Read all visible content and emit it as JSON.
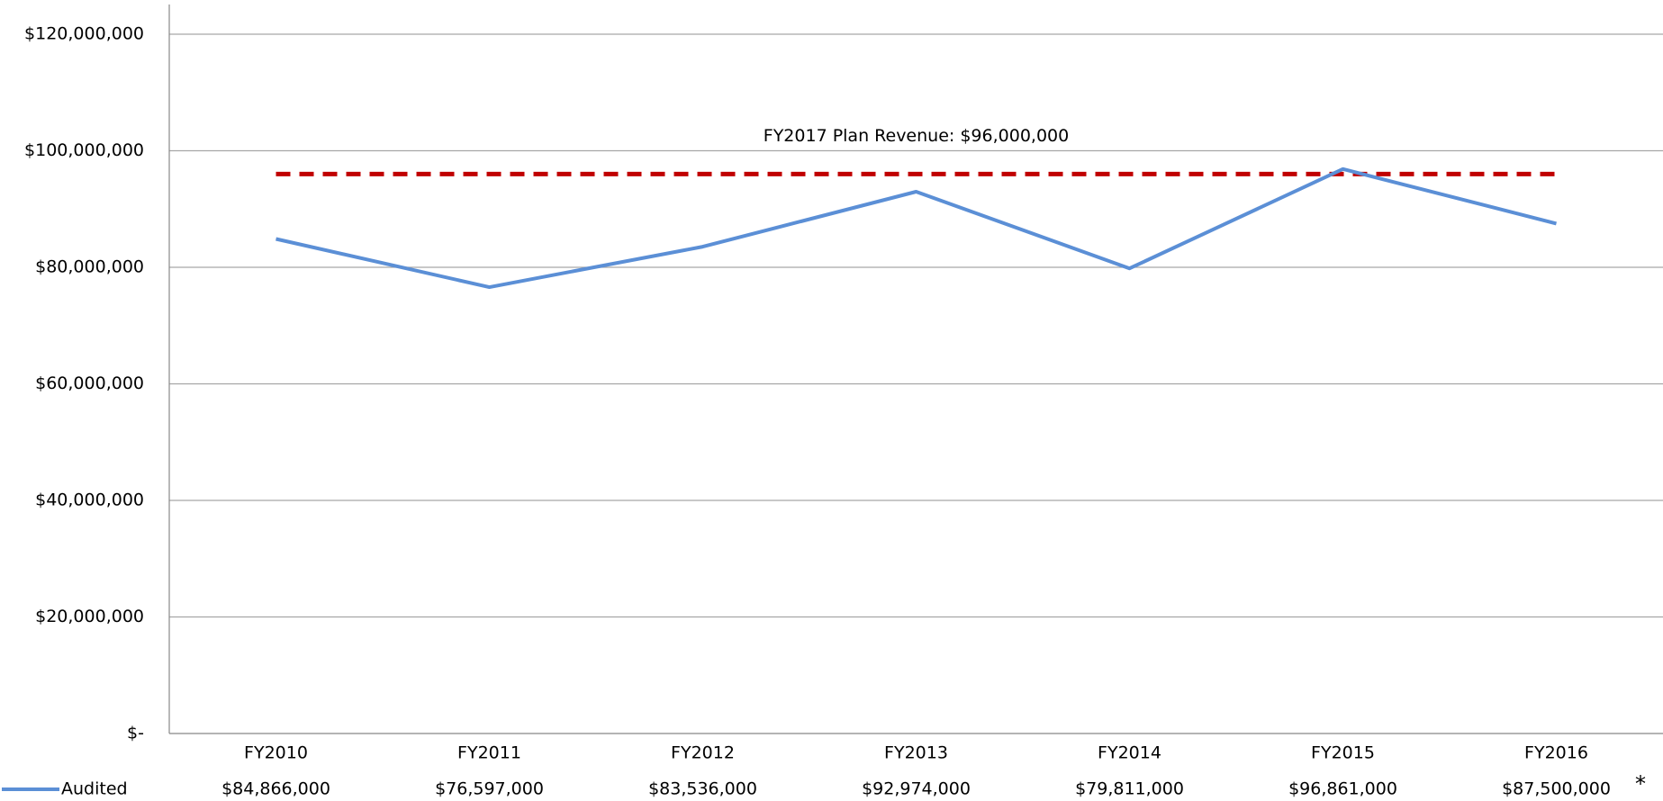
{
  "chart_data": {
    "type": "line",
    "categories": [
      "FY2010",
      "FY2011",
      "FY2012",
      "FY2013",
      "FY2014",
      "FY2015",
      "FY2016"
    ],
    "series": [
      {
        "name": "Audited",
        "color": "#5b8fd6",
        "values": [
          84866000,
          76597000,
          83536000,
          92974000,
          79811000,
          96861000,
          87500000
        ],
        "value_labels": [
          "$84,866,000",
          "$76,597,000",
          "$83,536,000",
          "$92,974,000",
          "$79,811,000",
          "$96,861,000",
          "$87,500,000"
        ]
      }
    ],
    "reference_line": {
      "value": 96000000,
      "label": "FY2017 Plan Revenue: $96,000,000",
      "color": "#c00000"
    },
    "footnote_marker": "*",
    "ylim": [
      0,
      120000000
    ],
    "yticks": [
      {
        "value": 0,
        "label": "$-"
      },
      {
        "value": 20000000,
        "label": "$20,000,000"
      },
      {
        "value": 40000000,
        "label": "$40,000,000"
      },
      {
        "value": 60000000,
        "label": "$60,000,000"
      },
      {
        "value": 80000000,
        "label": "$80,000,000"
      },
      {
        "value": 100000000,
        "label": "$100,000,000"
      },
      {
        "value": 120000000,
        "label": "$120,000,000"
      }
    ],
    "grid": true
  }
}
